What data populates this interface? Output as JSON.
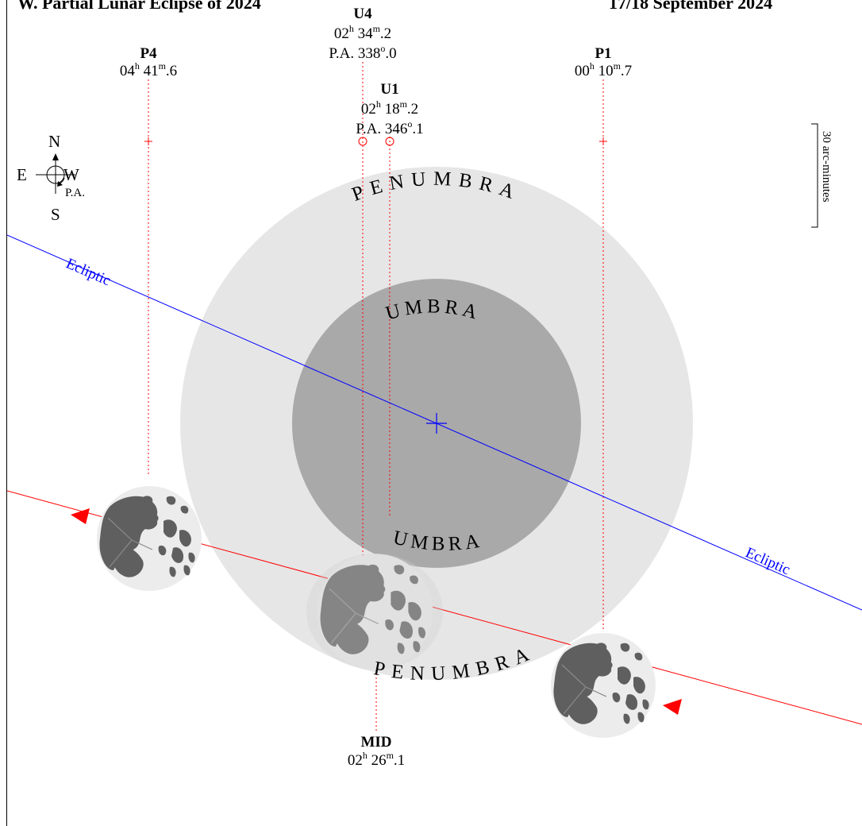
{
  "title": {
    "left_fragment": "W. Partial Lunar Eclipse of 2024",
    "right_fragment": "17/18 September 2024"
  },
  "shadow_labels": {
    "penumbra_top": "PENUMBRA",
    "penumbra_bottom": "PENUMBRA",
    "umbra_top": "UMBRA",
    "umbra_bottom": "UMBRA"
  },
  "ecliptic_label": "Ecliptic",
  "compass": {
    "north": "N",
    "south": "S",
    "east": "E",
    "west": "W",
    "pa": "P.A."
  },
  "scale_bar_label": "30 arc-minutes",
  "contacts": {
    "P4": {
      "name": "P4",
      "h": "04",
      "m": "41",
      "frac": "6"
    },
    "U4": {
      "name": "U4",
      "h": "02",
      "m": "34",
      "frac": "2",
      "pa": "P.A. 338",
      "pa_frac": "0"
    },
    "U1": {
      "name": "U1",
      "h": "02",
      "m": "18",
      "frac": "2",
      "pa": "P.A. 346",
      "pa_frac": "1"
    },
    "P1": {
      "name": "P1",
      "h": "00",
      "m": "10",
      "frac": "7"
    },
    "MID": {
      "name": "MID",
      "h": "02",
      "m": "26",
      "frac": "1"
    }
  },
  "colors": {
    "penumbra": "#e6e6e6",
    "umbra": "#a9a9a9",
    "ecliptic": "#0000ff",
    "moon_path": "#ff0000",
    "moon_light": "#ececec",
    "moon_maria": "#5f5f5f"
  },
  "icons": [
    "compass-icon",
    "moon-icon",
    "arrow-icon",
    "shadow-center-icon",
    "contact-marker-icon"
  ]
}
